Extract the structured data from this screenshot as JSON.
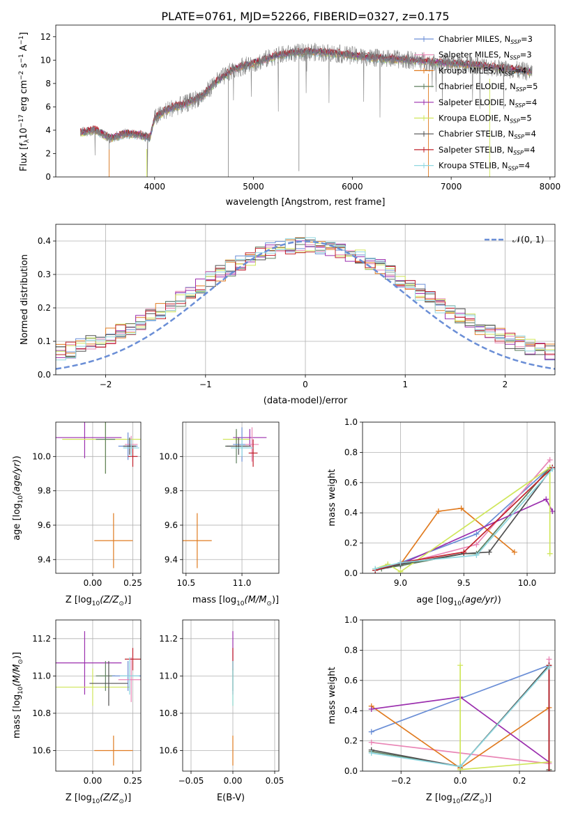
{
  "figure_title": "PLATE=0761, MJD=52266, FIBERID=0327, z=0.175",
  "colors": {
    "ch_miles": "#6a8ed6",
    "sa_miles": "#e985b5",
    "kr_miles": "#e07b20",
    "ch_elodie": "#5f7f5f",
    "sa_elodie": "#9b2fae",
    "kr_elodie": "#cfe65a",
    "ch_stelib": "#505050",
    "sa_stelib": "#c0202a",
    "kr_stelib": "#8ed7e0",
    "gray": "#808080",
    "grid": "#b0b0b0"
  },
  "chart_data": [
    {
      "id": "spectrum",
      "type": "line",
      "xlabel": "wavelength [Angstrom, rest frame]",
      "ylabel_parts": [
        "Flux [f",
        "λ",
        "10",
        "−17",
        " erg cm",
        "−2",
        " s",
        "−1",
        " A",
        "−1",
        "]"
      ],
      "xlim": [
        3000,
        8050
      ],
      "ylim": [
        0,
        13
      ],
      "xticks": [
        4000,
        5000,
        6000,
        7000,
        8000
      ],
      "yticks": [
        0,
        2,
        4,
        6,
        8,
        10,
        12
      ],
      "continuum": [
        [
          3250,
          3.8
        ],
        [
          3400,
          4.0
        ],
        [
          3550,
          3.3
        ],
        [
          3700,
          3.7
        ],
        [
          3850,
          3.6
        ],
        [
          3950,
          3.3
        ],
        [
          4000,
          5.0
        ],
        [
          4100,
          5.6
        ],
        [
          4200,
          6.0
        ],
        [
          4300,
          6.2
        ],
        [
          4400,
          6.6
        ],
        [
          4500,
          7.0
        ],
        [
          4600,
          8.0
        ],
        [
          4700,
          8.6
        ],
        [
          4800,
          9.2
        ],
        [
          4900,
          9.5
        ],
        [
          5000,
          9.7
        ],
        [
          5100,
          10.0
        ],
        [
          5200,
          10.3
        ],
        [
          5400,
          10.6
        ],
        [
          5600,
          10.7
        ],
        [
          5800,
          10.6
        ],
        [
          6000,
          10.4
        ],
        [
          6200,
          10.2
        ],
        [
          6400,
          10.1
        ],
        [
          6600,
          10.0
        ],
        [
          6800,
          9.8
        ],
        [
          7000,
          9.7
        ],
        [
          7200,
          9.6
        ],
        [
          7400,
          9.4
        ],
        [
          7600,
          9.2
        ],
        [
          7800,
          9.0
        ]
      ],
      "gaps": [
        [
          3520,
          3560
        ],
        [
          3905,
          3935
        ],
        [
          6750,
          6790
        ],
        [
          7370,
          7410
        ]
      ],
      "spikes": [
        [
          4745,
          0
        ],
        [
          5460,
          0.5
        ],
        [
          3540,
          0.4
        ]
      ],
      "legend": [
        {
          "name": "Chabrier MILES, N",
          "sub": "SSP",
          "val": "=3",
          "color_key": "ch_miles"
        },
        {
          "name": "Salpeter MILES, N",
          "sub": "SSP",
          "val": "=3",
          "color_key": "sa_miles"
        },
        {
          "name": "Kroupa MILES, N",
          "sub": "SSP",
          "val": "=4",
          "color_key": "kr_miles"
        },
        {
          "name": "Chabrier ELODIE, N",
          "sub": "SSP",
          "val": "=5",
          "color_key": "ch_elodie"
        },
        {
          "name": "Salpeter ELODIE, N",
          "sub": "SSP",
          "val": "=4",
          "color_key": "sa_elodie"
        },
        {
          "name": "Kroupa ELODIE, N",
          "sub": "SSP",
          "val": "=5",
          "color_key": "kr_elodie"
        },
        {
          "name": "Chabrier STELIB, N",
          "sub": "SSP",
          "val": "=4",
          "color_key": "ch_stelib"
        },
        {
          "name": "Salpeter STELIB, N",
          "sub": "SSP",
          "val": "=4",
          "color_key": "sa_stelib"
        },
        {
          "name": "Kroupa STELIB, N",
          "sub": "SSP",
          "val": "=4",
          "color_key": "kr_stelib"
        }
      ]
    },
    {
      "id": "residuals",
      "type": "histogram",
      "xlabel": "(data-model)/error",
      "ylabel": "Normed distribution",
      "xlim": [
        -2.5,
        2.5
      ],
      "ylim": [
        0,
        0.45
      ],
      "xticks": [
        -2,
        -1,
        0,
        1,
        2
      ],
      "yticks": [
        0.0,
        0.1,
        0.2,
        0.3,
        0.4
      ],
      "bin_width": 0.1,
      "normal_label": "𝒩(0, 1)",
      "series_color_keys": [
        "ch_miles",
        "sa_miles",
        "kr_miles",
        "ch_elodie",
        "sa_elodie",
        "kr_elodie",
        "ch_stelib",
        "sa_stelib",
        "kr_stelib"
      ]
    },
    {
      "id": "age_vs_Z",
      "type": "errorbar",
      "xlabel": "Z [log",
      "xlabel_sub": "10",
      "xlabel_tail": "(Z/Z",
      "ylabel": "age  [log10(age/yr)]",
      "xlim": [
        -0.23,
        0.3
      ],
      "ylim": [
        9.32,
        10.2
      ],
      "xticks": [
        0.0,
        0.25
      ],
      "yticks": [
        9.4,
        9.6,
        9.8,
        10.0
      ],
      "points": [
        {
          "x": 0.13,
          "xerr": 0.12,
          "y": 9.51,
          "yerr": 0.16,
          "color_key": "kr_miles"
        },
        {
          "x": -0.05,
          "xerr": 0.23,
          "y": 10.11,
          "yerr": 0.12,
          "color_key": "sa_elodie"
        },
        {
          "x": 0.08,
          "xerr": 0.27,
          "y": 10.1,
          "yerr": 0.2,
          "color_key": "kr_elodie"
        },
        {
          "x": 0.08,
          "xerr": 0.06,
          "y": 10.1,
          "yerr": 0.2,
          "color_key": "ch_elodie"
        },
        {
          "x": 0.22,
          "xerr": 0.06,
          "y": 10.06,
          "yerr": 0.08,
          "color_key": "ch_miles"
        },
        {
          "x": 0.24,
          "xerr": 0.04,
          "y": 10.07,
          "yerr": 0.05,
          "color_key": "sa_miles"
        },
        {
          "x": 0.25,
          "xerr": 0.03,
          "y": 10.0,
          "yerr": 0.06,
          "color_key": "sa_stelib"
        },
        {
          "x": 0.23,
          "xerr": 0.04,
          "y": 10.06,
          "yerr": 0.05,
          "color_key": "ch_stelib"
        },
        {
          "x": 0.24,
          "xerr": 0.05,
          "y": 10.05,
          "yerr": 0.05,
          "color_key": "kr_stelib"
        }
      ]
    },
    {
      "id": "age_vs_mass",
      "type": "errorbar",
      "xlabel": "mass [log",
      "xlabel_sub": "10",
      "xlabel_tail": "(M/M",
      "xlim": [
        10.47,
        11.33
      ],
      "ylim": [
        9.32,
        10.2
      ],
      "xticks": [
        10.5,
        11.0
      ],
      "yticks": [
        9.4,
        9.6,
        9.8,
        10.0
      ],
      "points": [
        {
          "x": 10.6,
          "xerr": 0.13,
          "y": 9.51,
          "yerr": 0.16,
          "color_key": "kr_miles"
        },
        {
          "x": 11.07,
          "xerr": 0.15,
          "y": 10.11,
          "yerr": 0.05,
          "color_key": "sa_elodie"
        },
        {
          "x": 10.95,
          "xerr": 0.12,
          "y": 10.1,
          "yerr": 0.05,
          "color_key": "kr_elodie"
        },
        {
          "x": 10.95,
          "xerr": 0.1,
          "y": 10.06,
          "yerr": 0.1,
          "color_key": "ch_elodie"
        },
        {
          "x": 11.0,
          "xerr": 0.08,
          "y": 10.07,
          "yerr": 0.1,
          "color_key": "ch_miles"
        },
        {
          "x": 11.09,
          "xerr": 0.06,
          "y": 10.07,
          "yerr": 0.1,
          "color_key": "sa_miles"
        },
        {
          "x": 11.1,
          "xerr": 0.04,
          "y": 10.02,
          "yerr": 0.08,
          "color_key": "sa_stelib"
        },
        {
          "x": 10.97,
          "xerr": 0.11,
          "y": 10.06,
          "yerr": 0.05,
          "color_key": "ch_stelib"
        },
        {
          "x": 11.0,
          "xerr": 0.1,
          "y": 10.05,
          "yerr": 0.05,
          "color_key": "kr_stelib"
        }
      ]
    },
    {
      "id": "weight_vs_age",
      "type": "line",
      "xlabel": "age  [log10(age/yr)]",
      "ylabel": "mass weight",
      "xlim": [
        8.7,
        10.22
      ],
      "ylim": [
        0,
        1.0
      ],
      "xticks": [
        9.0,
        9.5,
        10.0
      ],
      "yticks": [
        0.0,
        0.2,
        0.4,
        0.6,
        0.8,
        1.0
      ],
      "series": [
        {
          "color_key": "ch_miles",
          "pts": [
            [
              8.8,
              0.02
            ],
            [
              9.0,
              0.07
            ],
            [
              9.6,
              0.26
            ],
            [
              10.18,
              0.7
            ]
          ]
        },
        {
          "color_key": "sa_miles",
          "pts": [
            [
              8.8,
              0.02
            ],
            [
              9.0,
              0.06
            ],
            [
              9.6,
              0.19
            ],
            [
              10.18,
              0.75
            ]
          ]
        },
        {
          "color_key": "kr_miles",
          "pts": [
            [
              8.8,
              0.02
            ],
            [
              9.0,
              0.06
            ],
            [
              9.3,
              0.41
            ],
            [
              9.48,
              0.43
            ],
            [
              9.9,
              0.14
            ]
          ]
        },
        {
          "color_key": "ch_elodie",
          "pts": [
            [
              8.85,
              0.03
            ],
            [
              9.0,
              0.05
            ],
            [
              9.5,
              0.13
            ],
            [
              9.6,
              0.13
            ],
            [
              10.18,
              0.7
            ]
          ]
        },
        {
          "color_key": "sa_elodie",
          "pts": [
            [
              8.9,
              0.05
            ],
            [
              9.0,
              0.06
            ],
            [
              10.15,
              0.49
            ],
            [
              10.2,
              0.41
            ]
          ]
        },
        {
          "color_key": "kr_elodie",
          "pts": [
            [
              8.8,
              0.03
            ],
            [
              8.9,
              0.06
            ],
            [
              9.0,
              0.01
            ],
            [
              10.18,
              0.7
            ],
            [
              10.18,
              0.13
            ]
          ]
        },
        {
          "color_key": "ch_stelib",
          "pts": [
            [
              8.8,
              0.02
            ],
            [
              9.0,
              0.06
            ],
            [
              9.5,
              0.13
            ],
            [
              9.7,
              0.14
            ],
            [
              10.2,
              0.7
            ]
          ]
        },
        {
          "color_key": "sa_stelib",
          "pts": [
            [
              8.8,
              0.02
            ],
            [
              9.0,
              0.07
            ],
            [
              9.5,
              0.14
            ],
            [
              10.2,
              0.7
            ]
          ]
        },
        {
          "color_key": "kr_stelib",
          "pts": [
            [
              8.8,
              0.03
            ],
            [
              9.0,
              0.07
            ],
            [
              9.6,
              0.12
            ],
            [
              10.2,
              0.69
            ]
          ]
        }
      ]
    },
    {
      "id": "mass_vs_Z",
      "type": "errorbar",
      "xlabel": "Z [log",
      "xlabel_sub": "10",
      "xlabel_tail": "(Z/Z",
      "ylabel": "mass [log10(M/M⊙)]",
      "xlim": [
        -0.23,
        0.3
      ],
      "ylim": [
        10.49,
        11.3
      ],
      "xticks": [
        0.0,
        0.25
      ],
      "yticks": [
        10.6,
        10.8,
        11.0,
        11.2
      ],
      "points": [
        {
          "x": 0.13,
          "xerr": 0.12,
          "y": 10.6,
          "yerr": 0.08,
          "color_key": "kr_miles"
        },
        {
          "x": -0.05,
          "xerr": 0.23,
          "y": 11.07,
          "yerr": 0.17,
          "color_key": "sa_elodie"
        },
        {
          "x": 0.0,
          "xerr": 0.23,
          "y": 10.94,
          "yerr": 0.1,
          "color_key": "kr_elodie"
        },
        {
          "x": 0.08,
          "xerr": 0.06,
          "y": 11.0,
          "yerr": 0.08,
          "color_key": "ch_elodie"
        },
        {
          "x": 0.22,
          "xerr": 0.1,
          "y": 11.0,
          "yerr": 0.08,
          "color_key": "ch_miles"
        },
        {
          "x": 0.24,
          "xerr": 0.08,
          "y": 10.98,
          "yerr": 0.12,
          "color_key": "sa_miles"
        },
        {
          "x": 0.25,
          "xerr": 0.05,
          "y": 11.09,
          "yerr": 0.06,
          "color_key": "sa_stelib"
        },
        {
          "x": 0.1,
          "xerr": 0.12,
          "y": 10.96,
          "yerr": 0.12,
          "color_key": "ch_stelib"
        },
        {
          "x": 0.23,
          "xerr": 0.06,
          "y": 11.0,
          "yerr": 0.1,
          "color_key": "kr_stelib"
        }
      ]
    },
    {
      "id": "mass_vs_ebv",
      "type": "errorbar",
      "xlabel": "E(B-V)",
      "xlim": [
        -0.06,
        0.055
      ],
      "ylim": [
        10.49,
        11.3
      ],
      "xticks": [
        -0.05,
        0.0,
        0.05
      ],
      "yticks": [
        10.6,
        10.8,
        11.0,
        11.2
      ],
      "points": [
        {
          "x": 0.0,
          "xerr": 0.0,
          "y": 10.6,
          "yerr": 0.08,
          "color_key": "kr_miles"
        },
        {
          "x": 0.0,
          "xerr": 0.0,
          "y": 11.07,
          "yerr": 0.17,
          "color_key": "sa_elodie"
        },
        {
          "x": 0.0,
          "xerr": 0.0,
          "y": 10.94,
          "yerr": 0.1,
          "color_key": "kr_elodie"
        },
        {
          "x": 0.0,
          "xerr": 0.0,
          "y": 11.0,
          "yerr": 0.08,
          "color_key": "ch_elodie"
        },
        {
          "x": 0.0,
          "xerr": 0.0,
          "y": 11.09,
          "yerr": 0.06,
          "color_key": "sa_stelib"
        },
        {
          "x": 0.0,
          "xerr": 0.0,
          "y": 10.96,
          "yerr": 0.12,
          "color_key": "kr_stelib"
        }
      ]
    },
    {
      "id": "weight_vs_Z",
      "type": "line",
      "xlabel": "Z [log",
      "xlabel_sub": "10",
      "xlabel_tail": "(Z/Z",
      "ylabel": "mass weight",
      "xlim": [
        -0.33,
        0.32
      ],
      "ylim": [
        0,
        1.0
      ],
      "xticks": [
        -0.2,
        0.0,
        0.2
      ],
      "yticks": [
        0.0,
        0.2,
        0.4,
        0.6,
        0.8,
        1.0
      ],
      "series": [
        {
          "color_key": "ch_miles",
          "pts": [
            [
              -0.3,
              0.26
            ],
            [
              0.3,
              0.7
            ]
          ]
        },
        {
          "color_key": "sa_miles",
          "pts": [
            [
              -0.3,
              0.19
            ],
            [
              0.3,
              0.05
            ],
            [
              0.3,
              0.74
            ]
          ]
        },
        {
          "color_key": "kr_miles",
          "pts": [
            [
              -0.3,
              0.43
            ],
            [
              0.0,
              0.02
            ],
            [
              0.3,
              0.42
            ]
          ]
        },
        {
          "color_key": "ch_elodie",
          "pts": [
            [
              -0.3,
              0.13
            ],
            [
              0.0,
              0.03
            ],
            [
              0.3,
              0.7
            ],
            [
              0.3,
              0.01
            ]
          ]
        },
        {
          "color_key": "sa_elodie",
          "pts": [
            [
              -0.3,
              0.41
            ],
            [
              0.0,
              0.49
            ],
            [
              0.3,
              0.06
            ]
          ]
        },
        {
          "color_key": "kr_elodie",
          "pts": [
            [
              0.0,
              0.7
            ],
            [
              0.0,
              0.01
            ],
            [
              0.3,
              0.06
            ]
          ]
        },
        {
          "color_key": "ch_stelib",
          "pts": [
            [
              -0.3,
              0.14
            ],
            [
              0.0,
              0.03
            ],
            [
              0.3,
              0.7
            ],
            [
              0.3,
              0.0
            ]
          ]
        },
        {
          "color_key": "sa_stelib",
          "pts": [
            [
              0.3,
              0.7
            ],
            [
              0.3,
              0.0
            ]
          ]
        },
        {
          "color_key": "kr_stelib",
          "pts": [
            [
              -0.3,
              0.12
            ],
            [
              0.0,
              0.03
            ],
            [
              0.3,
              0.69
            ]
          ]
        }
      ]
    }
  ]
}
